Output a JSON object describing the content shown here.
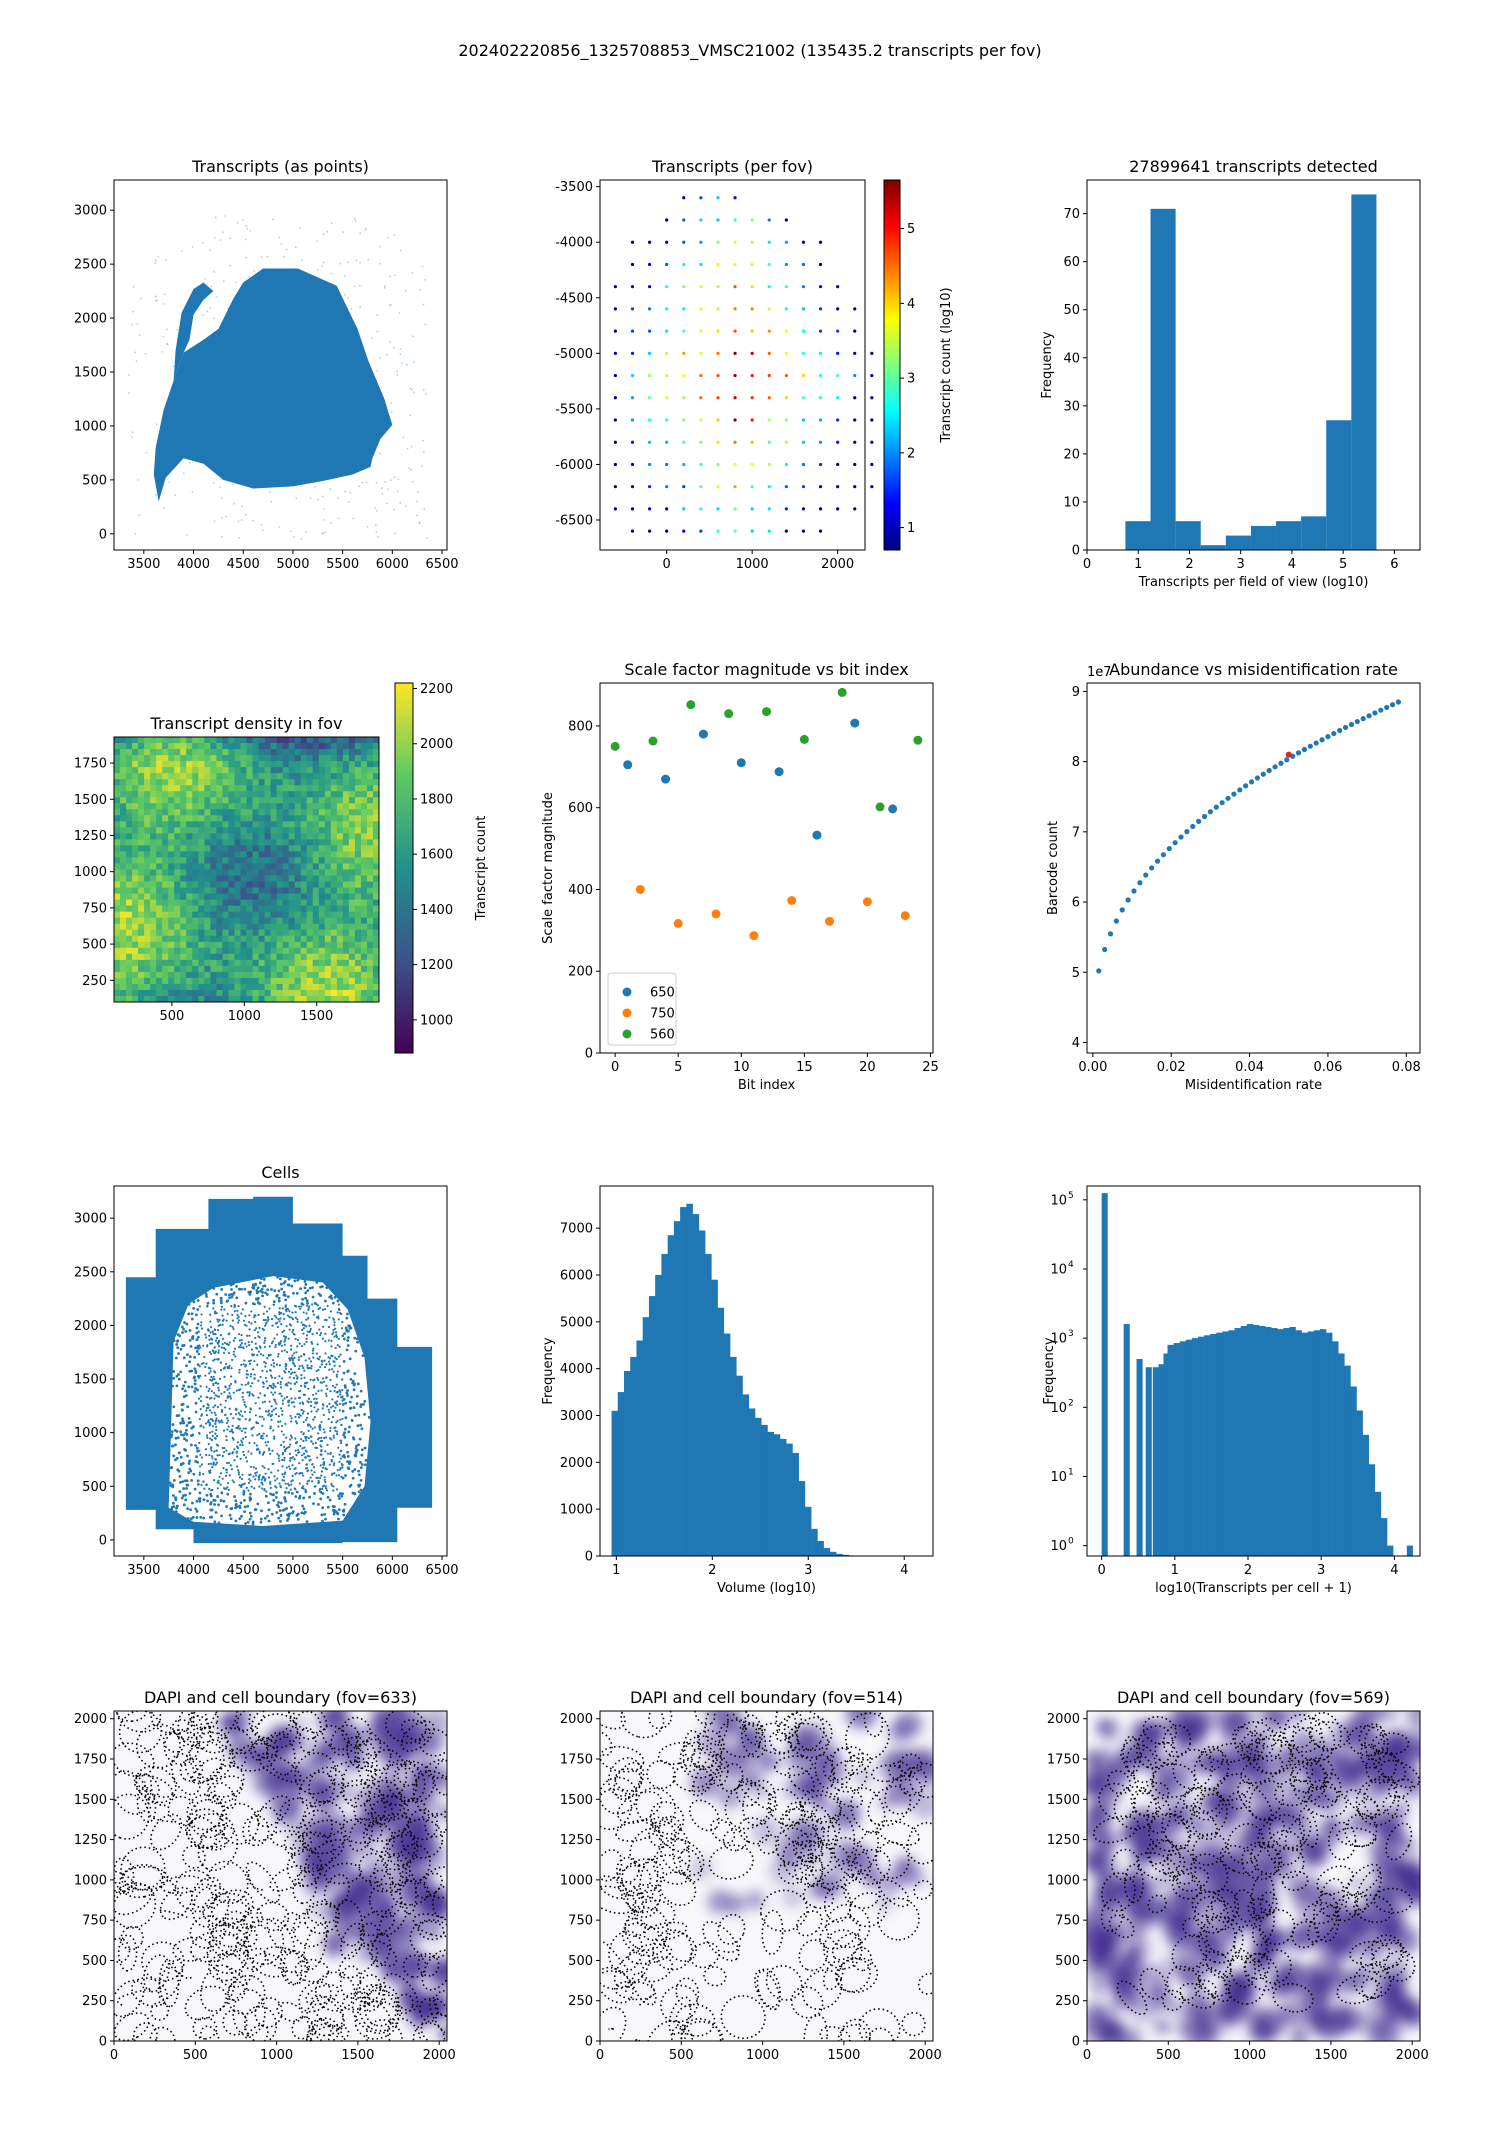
{
  "figure_title": "202402220856_1325708853_VMSC21002 (135435.2 transcripts per fov)",
  "colors": {
    "blue": "#1f77b4",
    "orange": "#ff7f0e",
    "green": "#2ca02c",
    "dapi": "#3f2a8f"
  },
  "chart_data": [
    {
      "id": "transcripts_points",
      "type": "scatter",
      "title": "Transcripts (as points)",
      "xlabel": "",
      "ylabel": "",
      "xlim": [
        3200,
        6550
      ],
      "ylim": [
        -150,
        3280
      ],
      "xticks": [
        3500,
        4000,
        4500,
        5000,
        5500,
        6000,
        6500
      ],
      "yticks": [
        0,
        500,
        1000,
        1500,
        2000,
        2500,
        3000
      ],
      "tissue_outline": [
        [
          3650,
          300
        ],
        [
          3720,
          520
        ],
        [
          3900,
          700
        ],
        [
          4100,
          650
        ],
        [
          4300,
          500
        ],
        [
          4600,
          420
        ],
        [
          5000,
          440
        ],
        [
          5300,
          490
        ],
        [
          5600,
          550
        ],
        [
          5780,
          620
        ],
        [
          5800,
          700
        ],
        [
          5880,
          880
        ],
        [
          6000,
          1010
        ],
        [
          5920,
          1250
        ],
        [
          5760,
          1600
        ],
        [
          5650,
          1900
        ],
        [
          5440,
          2300
        ],
        [
          5050,
          2460
        ],
        [
          4700,
          2460
        ],
        [
          4500,
          2330
        ],
        [
          4400,
          2180
        ],
        [
          4250,
          1900
        ],
        [
          4100,
          1800
        ],
        [
          3900,
          1680
        ],
        [
          3800,
          1420
        ],
        [
          3700,
          1150
        ],
        [
          3620,
          800
        ],
        [
          3600,
          550
        ]
      ],
      "arm_outline": [
        [
          3800,
          1420
        ],
        [
          3820,
          1700
        ],
        [
          3880,
          2050
        ],
        [
          4000,
          2270
        ],
        [
          4100,
          2330
        ],
        [
          4200,
          2250
        ],
        [
          4100,
          2170
        ],
        [
          4000,
          2030
        ],
        [
          3960,
          1800
        ],
        [
          3900,
          1680
        ]
      ]
    },
    {
      "id": "transcripts_per_fov",
      "type": "scatter",
      "title": "Transcripts (per fov)",
      "colorbar_label": "Transcript count (log10)",
      "xlim": [
        -780,
        2320
      ],
      "ylim": [
        -6770,
        -3440
      ],
      "xticks": [
        0,
        1000,
        2000
      ],
      "yticks": [
        -3500,
        -4000,
        -4500,
        -5000,
        -5500,
        -6000,
        -6500
      ],
      "clim": [
        0.7,
        5.65
      ],
      "cticks": [
        1,
        2,
        3,
        4,
        5
      ],
      "rows": [
        {
          "y": -3600,
          "x_start": 200,
          "n": 4
        },
        {
          "y": -3800,
          "x_start": 0,
          "n": 8
        },
        {
          "y": -4000,
          "x_start": -400,
          "n": 12
        },
        {
          "y": -4200,
          "x_start": -400,
          "n": 12
        },
        {
          "y": -4400,
          "x_start": -600,
          "n": 14
        },
        {
          "y": -4600,
          "x_start": -600,
          "n": 15
        },
        {
          "y": -4800,
          "x_start": -600,
          "n": 15
        },
        {
          "y": -5000,
          "x_start": -600,
          "n": 16
        },
        {
          "y": -5200,
          "x_start": -600,
          "n": 16
        },
        {
          "y": -5400,
          "x_start": -600,
          "n": 16
        },
        {
          "y": -5600,
          "x_start": -600,
          "n": 16
        },
        {
          "y": -5800,
          "x_start": -600,
          "n": 16
        },
        {
          "y": -6000,
          "x_start": -600,
          "n": 16
        },
        {
          "y": -6200,
          "x_start": -600,
          "n": 16
        },
        {
          "y": -6400,
          "x_start": -600,
          "n": 15
        },
        {
          "y": -6600,
          "x_start": -400,
          "n": 12
        }
      ]
    },
    {
      "id": "hist_fov",
      "type": "bar",
      "title": "27899641 transcripts detected",
      "xlabel": "Transcripts per field of view (log10)",
      "ylabel": "Frequency",
      "xlim": [
        0,
        6.5
      ],
      "ylim": [
        0,
        77
      ],
      "xticks": [
        0,
        1,
        2,
        3,
        4,
        5,
        6
      ],
      "yticks": [
        0,
        10,
        20,
        30,
        40,
        50,
        60,
        70
      ],
      "bin_edges": [
        0.75,
        1.24,
        1.73,
        2.22,
        2.71,
        3.2,
        3.69,
        4.18,
        4.67,
        5.16,
        5.65
      ],
      "values": [
        6,
        71,
        6,
        1,
        3,
        5,
        6,
        7,
        27,
        74
      ]
    },
    {
      "id": "density_fov",
      "type": "heatmap",
      "title": "Transcript density in fov",
      "colorbar_label": "Transcript count",
      "xlim": [
        100,
        1930
      ],
      "ylim": [
        100,
        1930
      ],
      "xticks": [
        500,
        1000,
        1500
      ],
      "yticks": [
        250,
        500,
        750,
        1000,
        1250,
        1500,
        1750
      ],
      "clim": [
        880,
        2220
      ],
      "cticks": [
        1000,
        1200,
        1400,
        1600,
        1800,
        2000,
        2200
      ]
    },
    {
      "id": "scale_factor",
      "type": "scatter",
      "title": "Scale factor magnitude vs bit index",
      "xlabel": "Bit index",
      "ylabel": "Scale factor magnitude",
      "xlim": [
        -1.2,
        25.2
      ],
      "ylim": [
        0,
        905
      ],
      "xticks": [
        0,
        5,
        10,
        15,
        20,
        25
      ],
      "yticks": [
        0,
        200,
        400,
        600,
        800
      ],
      "legend_position": "lower-left",
      "series": [
        {
          "name": "650",
          "x": [
            1,
            4,
            7,
            10,
            13,
            16,
            19,
            22
          ],
          "y": [
            705,
            670,
            780,
            710,
            688,
            533,
            807,
            597
          ]
        },
        {
          "name": "750",
          "x": [
            2,
            5,
            8,
            11,
            14,
            17,
            20,
            23
          ],
          "y": [
            400,
            317,
            340,
            287,
            373,
            322,
            370,
            336
          ]
        },
        {
          "name": "560",
          "x": [
            0,
            3,
            6,
            9,
            12,
            15,
            18,
            21,
            24
          ],
          "y": [
            750,
            763,
            852,
            830,
            835,
            767,
            882,
            602,
            765
          ]
        }
      ]
    },
    {
      "id": "abundance",
      "type": "scatter",
      "title": "Abundance vs misidentification rate",
      "xlabel": "Misidentification rate",
      "ylabel": "Barcode count",
      "exponent_label": "1e7",
      "xlim": [
        -0.0015,
        0.0835
      ],
      "ylim": [
        3.85,
        9.12
      ],
      "xticks": [
        0.0,
        0.02,
        0.04,
        0.06,
        0.08
      ],
      "yticks": [
        4,
        5,
        6,
        7,
        8,
        9
      ],
      "highlight": {
        "x": 0.05,
        "y": 8.1
      }
    },
    {
      "id": "cells",
      "type": "scatter",
      "title": "Cells",
      "xlim": [
        3200,
        6550
      ],
      "ylim": [
        -150,
        3300
      ],
      "xticks": [
        3500,
        4000,
        4500,
        5000,
        5500,
        6000,
        6500
      ],
      "yticks": [
        0,
        500,
        1000,
        1500,
        2000,
        2500,
        3000
      ],
      "inner_region": [
        [
          3750,
          300
        ],
        [
          3800,
          1850
        ],
        [
          3950,
          2200
        ],
        [
          4200,
          2350
        ],
        [
          4800,
          2460
        ],
        [
          5300,
          2400
        ],
        [
          5550,
          2150
        ],
        [
          5720,
          1700
        ],
        [
          5780,
          1100
        ],
        [
          5720,
          500
        ],
        [
          5500,
          180
        ],
        [
          4700,
          130
        ],
        [
          4000,
          170
        ]
      ]
    },
    {
      "id": "volume_hist",
      "type": "bar",
      "title": "",
      "xlabel": "Volume (log10)",
      "ylabel": "Frequency",
      "xlim": [
        0.83,
        4.3
      ],
      "ylim": [
        0,
        7900
      ],
      "xticks": [
        1,
        2,
        3,
        4
      ],
      "yticks": [
        0,
        1000,
        2000,
        3000,
        4000,
        5000,
        6000,
        7000
      ],
      "bin_edges_start": 0.95,
      "bin_width": 0.065,
      "values": [
        3100,
        3500,
        3950,
        4250,
        4600,
        5100,
        5550,
        6000,
        6450,
        6850,
        7150,
        7450,
        7520,
        7300,
        6950,
        6450,
        5900,
        5300,
        4750,
        4250,
        3850,
        3450,
        3150,
        2950,
        2800,
        2650,
        2600,
        2500,
        2400,
        2200,
        1600,
        1050,
        580,
        320,
        170,
        90,
        45,
        25,
        12,
        6,
        3,
        2
      ]
    },
    {
      "id": "transcripts_per_cell",
      "type": "bar",
      "yscale": "log",
      "title": "",
      "xlabel": "log10(Transcripts per cell + 1)",
      "ylabel": "Frequency",
      "xlim": [
        -0.2,
        4.35
      ],
      "ylim_log10": [
        -0.15,
        5.2
      ],
      "xticks": [
        0,
        1,
        2,
        3,
        4
      ],
      "yticks_exp": [
        0,
        1,
        2,
        3,
        4,
        5
      ],
      "bin_width": 0.0833,
      "bars": [
        {
          "x": 0.0,
          "v": 125000
        },
        {
          "x": 0.301,
          "v": 1600
        },
        {
          "x": 0.477,
          "v": 500
        },
        {
          "x": 0.602,
          "v": 380
        },
        {
          "x": 0.699,
          "v": 380
        },
        {
          "x": 0.778,
          "v": 420
        },
        {
          "x": 0.845,
          "v": 600
        },
        {
          "x": 0.903,
          "v": 700
        }
      ],
      "continuous_start": 0.9,
      "continuous_step": 0.0833,
      "continuous_values": [
        800,
        850,
        900,
        950,
        1000,
        1050,
        1100,
        1150,
        1200,
        1250,
        1300,
        1400,
        1500,
        1600,
        1550,
        1500,
        1450,
        1400,
        1350,
        1400,
        1450,
        1300,
        1200,
        1250,
        1300,
        1350,
        1200,
        900,
        600,
        400,
        200,
        90,
        40,
        15,
        6,
        2.5,
        1
      ],
      "tail_bar": {
        "x": 4.17,
        "v": 1
      }
    },
    {
      "id": "dapi_633",
      "type": "image",
      "title": "DAPI and cell boundary (fov=633)",
      "xlim": [
        0,
        2048
      ],
      "ylim": [
        0,
        2048
      ],
      "xticks": [
        0,
        500,
        1000,
        1500,
        2000
      ],
      "yticks": [
        0,
        250,
        500,
        750,
        1000,
        1250,
        1500,
        1750,
        2000
      ]
    },
    {
      "id": "dapi_514",
      "type": "image",
      "title": "DAPI and cell boundary (fov=514)",
      "xlim": [
        0,
        2048
      ],
      "ylim": [
        0,
        2048
      ],
      "xticks": [
        0,
        500,
        1000,
        1500,
        2000
      ],
      "yticks": [
        0,
        250,
        500,
        750,
        1000,
        1250,
        1500,
        1750,
        2000
      ]
    },
    {
      "id": "dapi_569",
      "type": "image",
      "title": "DAPI and cell boundary (fov=569)",
      "xlim": [
        0,
        2048
      ],
      "ylim": [
        0,
        2048
      ],
      "xticks": [
        0,
        500,
        1000,
        1500,
        2000
      ],
      "yticks": [
        0,
        250,
        500,
        750,
        1000,
        1250,
        1500,
        1750,
        2000
      ]
    }
  ]
}
